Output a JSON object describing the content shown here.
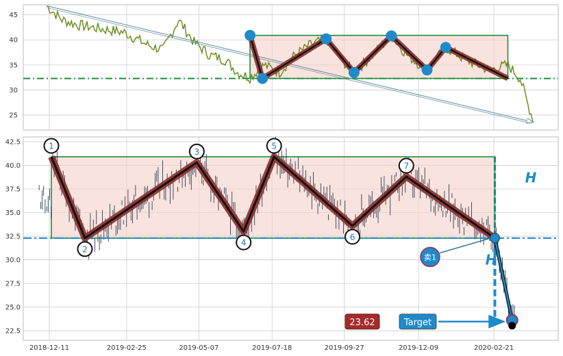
{
  "colors": {
    "price_line": "#6b8e23",
    "candle": "#2f3e55",
    "pattern_fill": "#f5d0c8",
    "pattern_border": "#1e8c3a",
    "zigzag": "#8b2c2c",
    "marker_blue": "#1f8ac9",
    "label_red_bg": "#a52a2a",
    "target_bg": "#1f8ac9",
    "support": "#1e8c3a",
    "grid": "#cccccc"
  },
  "chart_data": [
    {
      "type": "line",
      "panel": "top",
      "yticks": [
        25,
        30,
        35,
        40,
        45
      ],
      "ylim": [
        22,
        47
      ],
      "grid": true,
      "close_series_keypoints": [
        {
          "x": 0,
          "y": 46.8
        },
        {
          "x": 10,
          "y": 44.0
        },
        {
          "x": 20,
          "y": 43.0
        },
        {
          "x": 35,
          "y": 42.2
        },
        {
          "x": 50,
          "y": 41.5
        },
        {
          "x": 65,
          "y": 39.0
        },
        {
          "x": 75,
          "y": 38.0
        },
        {
          "x": 85,
          "y": 44.0
        },
        {
          "x": 95,
          "y": 39.5
        },
        {
          "x": 105,
          "y": 37.0
        },
        {
          "x": 115,
          "y": 36.0
        },
        {
          "x": 123,
          "y": 33.5
        },
        {
          "x": 131,
          "y": 32.5
        },
        {
          "x": 140,
          "y": 35.0
        },
        {
          "x": 150,
          "y": 33.5
        },
        {
          "x": 160,
          "y": 37.0
        },
        {
          "x": 170,
          "y": 39.0
        },
        {
          "x": 180,
          "y": 40.2
        },
        {
          "x": 190,
          "y": 36.0
        },
        {
          "x": 198,
          "y": 33.5
        },
        {
          "x": 210,
          "y": 37.0
        },
        {
          "x": 222,
          "y": 40.8
        },
        {
          "x": 232,
          "y": 37.0
        },
        {
          "x": 245,
          "y": 34.0
        },
        {
          "x": 257,
          "y": 38.5
        },
        {
          "x": 270,
          "y": 36.0
        },
        {
          "x": 285,
          "y": 34.0
        },
        {
          "x": 297,
          "y": 35.0
        },
        {
          "x": 305,
          "y": 32.3
        },
        {
          "x": 310,
          "y": 27.0
        },
        {
          "x": 314,
          "y": 23.6
        }
      ],
      "support_level": 32.3,
      "pattern_box": {
        "x_start": 131,
        "x_end": 297,
        "y_low": 32.3,
        "y_high": 40.9
      }
    },
    {
      "type": "line",
      "panel": "bottom",
      "xticks": [
        "2018-12-11",
        "2019-02-25",
        "2019-05-07",
        "2019-07-18",
        "2019-09-27",
        "2019-12-09",
        "2020-02-21"
      ],
      "yticks": [
        22.5,
        25.0,
        27.5,
        30.0,
        32.5,
        35.0,
        37.5,
        40.0,
        42.5
      ],
      "ylim": [
        21.5,
        43.0
      ],
      "grid": true,
      "zigzag_points": [
        {
          "label": "1",
          "x": "2018-12-13",
          "y": 40.9
        },
        {
          "label": "2",
          "x": "2019-01-15",
          "y": 32.3
        },
        {
          "label": "3",
          "x": "2019-05-05",
          "y": 40.3
        },
        {
          "label": "4",
          "x": "2019-06-20",
          "y": 33.0
        },
        {
          "label": "5",
          "x": "2019-07-20",
          "y": 40.9
        },
        {
          "label": "6",
          "x": "2019-10-05",
          "y": 33.6
        },
        {
          "label": "7",
          "x": "2019-11-27",
          "y": 38.8
        },
        {
          "label": "",
          "x": "2020-02-22",
          "y": 32.3
        }
      ],
      "breakdown": {
        "x": "2020-02-22",
        "y": 32.3
      },
      "target": {
        "x": "2020-03-10",
        "y": 23.62
      },
      "support_level": 32.3,
      "pattern_box": {
        "y_low": 32.3,
        "y_high": 40.9
      }
    }
  ],
  "annotations": {
    "h_label_right": "H",
    "h_label_left": "H",
    "sell_label": "卖1",
    "target_value": "23.62",
    "target_label": "Target"
  }
}
